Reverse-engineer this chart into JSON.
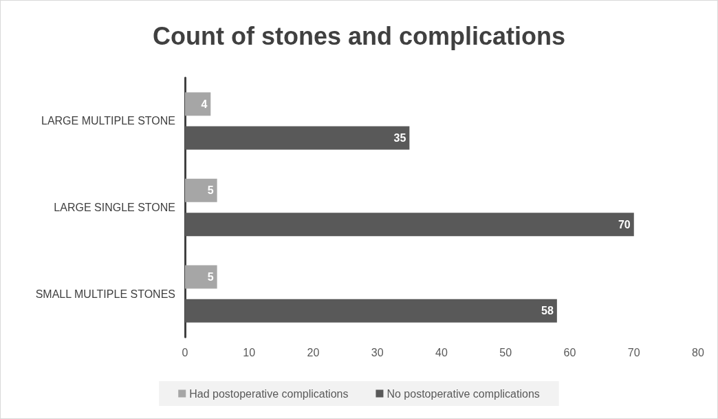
{
  "chart_data": {
    "type": "bar",
    "orientation": "horizontal",
    "title": "Count of stones and complications",
    "categories": [
      "LARGE MULTIPLE STONE",
      "LARGE SINGLE STONE",
      "SMALL MULTIPLE STONES"
    ],
    "series": [
      {
        "name": "Had postoperative complications",
        "color": "#a6a6a6",
        "values": [
          4,
          5,
          5
        ]
      },
      {
        "name": "No postoperative complications",
        "color": "#595959",
        "values": [
          35,
          70,
          58
        ]
      }
    ],
    "xlim": [
      0,
      80
    ],
    "xticks": [
      0,
      10,
      20,
      30,
      40,
      50,
      60,
      70,
      80
    ],
    "grid": false,
    "legend": "bottom",
    "data_labels": true
  }
}
